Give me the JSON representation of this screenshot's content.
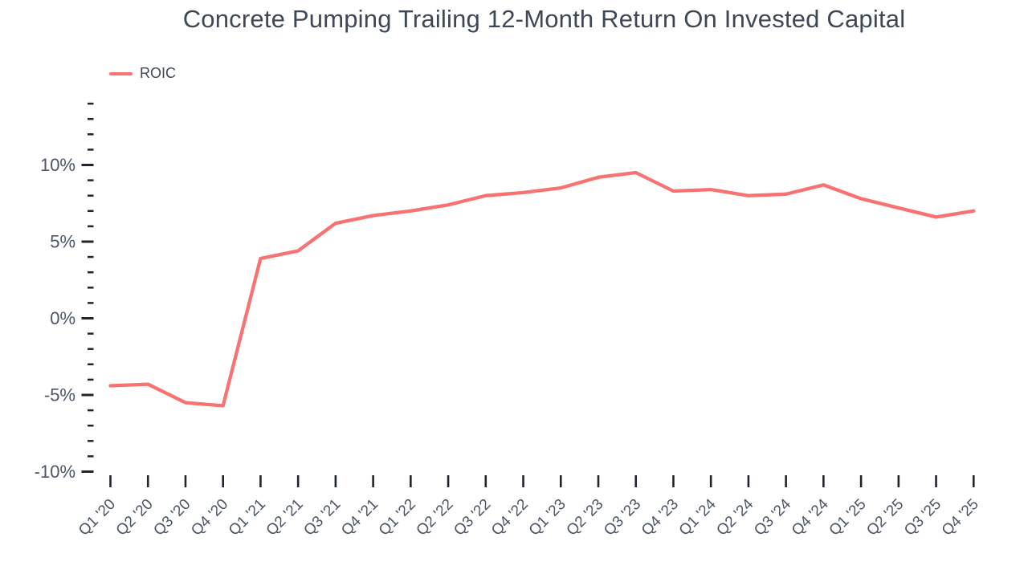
{
  "title": "Concrete Pumping Trailing 12-Month Return On Invested Capital",
  "legend": [
    {
      "label": "ROIC",
      "color": "#F97272"
    }
  ],
  "chart_data": {
    "type": "line",
    "title": "Concrete Pumping Trailing 12-Month Return On Invested Capital",
    "xlabel": "",
    "ylabel": "",
    "unit": "%",
    "grid": false,
    "legend_position": "top-left",
    "categories": [
      "Q1 '20",
      "Q2 '20",
      "Q3 '20",
      "Q4 '20",
      "Q1 '21",
      "Q2 '21",
      "Q3 '21",
      "Q4 '21",
      "Q1 '22",
      "Q2 '22",
      "Q3 '22",
      "Q4 '22",
      "Q1 '23",
      "Q2 '23",
      "Q3 '23",
      "Q4 '23",
      "Q1 '24",
      "Q2 '24",
      "Q3 '24",
      "Q4 '24",
      "Q1 '25",
      "Q2 '25",
      "Q3 '25",
      "Q4 '25"
    ],
    "series": [
      {
        "name": "ROIC",
        "color": "#F97272",
        "values": [
          -4.4,
          -4.3,
          -5.5,
          -5.7,
          3.9,
          4.4,
          6.2,
          6.7,
          7.0,
          7.4,
          8.0,
          8.2,
          8.5,
          9.2,
          9.5,
          8.3,
          8.4,
          8.0,
          8.1,
          8.7,
          7.8,
          7.2,
          6.6,
          7.0
        ]
      }
    ],
    "ylim": [
      -10,
      14
    ],
    "y_major_ticks": [
      {
        "value": 10,
        "label": "10%"
      },
      {
        "value": 5,
        "label": "5%"
      },
      {
        "value": 0,
        "label": "0%"
      },
      {
        "value": -5,
        "label": "-5%"
      },
      {
        "value": -10,
        "label": "-10%"
      }
    ],
    "y_minor_tick_step": 1
  },
  "colors": {
    "background": "#FFFFFF",
    "line": "#F97272",
    "title_text": "#3E4855",
    "axis_label_text": "#4B5563",
    "tick_mark": "#20252C"
  }
}
